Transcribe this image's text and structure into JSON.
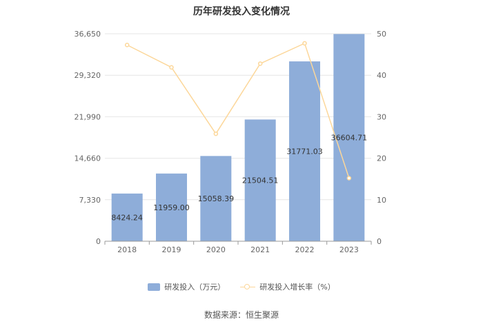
{
  "title": "历年研发投入变化情况",
  "source": "数据来源：恒生聚源",
  "colors": {
    "bar": "#8eadd9",
    "line": "#fcd79a",
    "grid": "#e6e6e6",
    "axis": "#999999"
  },
  "chart_data": {
    "type": "bar",
    "title": "历年研发投入变化情况",
    "categories": [
      "2018",
      "2019",
      "2020",
      "2021",
      "2022",
      "2023"
    ],
    "series": [
      {
        "name": "研发投入（万元）",
        "type": "bar",
        "axis": "left",
        "values": [
          8424.24,
          11959.0,
          15058.39,
          21504.51,
          31771.03,
          36604.71
        ],
        "labels": [
          "8424.24",
          "11959.00",
          "15058.39",
          "21504.51",
          "31771.03",
          "36604.71"
        ]
      },
      {
        "name": "研发投入增长率（%）",
        "type": "line",
        "axis": "right",
        "values": [
          47.3,
          41.9,
          25.9,
          42.8,
          47.7,
          15.2
        ]
      }
    ],
    "y_left": {
      "ylim": [
        0,
        36650
      ],
      "ticks": [
        0,
        7330,
        14660,
        21990,
        29320,
        36650
      ],
      "tick_labels": [
        "0",
        "7,330",
        "14,660",
        "21,990",
        "29,320",
        "36,650"
      ]
    },
    "y_right": {
      "ylim": [
        0,
        50
      ],
      "ticks": [
        0,
        10,
        20,
        30,
        40,
        50
      ],
      "tick_labels": [
        "0",
        "10",
        "20",
        "30",
        "40",
        "50"
      ]
    },
    "grid": true,
    "legend": "bottom-center"
  },
  "legend": {
    "bar_label": "研发投入（万元）",
    "line_label": "研发投入增长率（%）"
  }
}
